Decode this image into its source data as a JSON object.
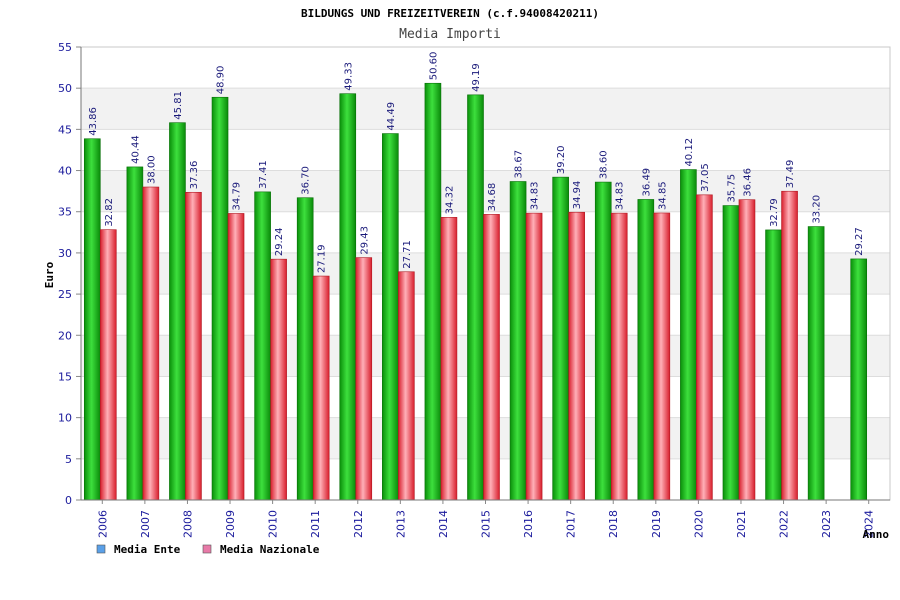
{
  "chart_data": {
    "type": "bar",
    "title": "BILDUNGS UND FREIZEITVEREIN (c.f.94008420211)",
    "subtitle": "Media Importi",
    "xlabel": "Anno",
    "ylabel": "Euro",
    "ylim": [
      0,
      55
    ],
    "yticks": [
      0,
      5,
      10,
      15,
      20,
      25,
      30,
      35,
      40,
      45,
      50,
      55
    ],
    "grid": true,
    "legend_position": "bottom-left",
    "categories": [
      "2006",
      "2007",
      "2008",
      "2009",
      "2010",
      "2011",
      "2012",
      "2013",
      "2014",
      "2015",
      "2016",
      "2017",
      "2018",
      "2019",
      "2020",
      "2021",
      "2022",
      "2023",
      "2024"
    ],
    "series": [
      {
        "name": "Media Ente",
        "legend_color": "#5aa0e8",
        "color": "#12b812",
        "values": [
          43.86,
          40.44,
          45.81,
          48.9,
          37.41,
          36.7,
          49.33,
          44.49,
          50.6,
          49.19,
          38.67,
          39.2,
          38.6,
          36.49,
          40.12,
          35.75,
          32.79,
          33.2,
          29.27
        ],
        "labels": [
          "43.86",
          "40.44",
          "45.81",
          "48.90",
          "37.41",
          "36.70",
          "49.33",
          "44.49",
          "50.60",
          "49.19",
          "38.67",
          "39.20",
          "38.60",
          "36.49",
          "40.12",
          "35.75",
          "32.79",
          "33.20",
          "29.27"
        ]
      },
      {
        "name": "Media Nazionale",
        "legend_color": "#e87aa8",
        "color": "#e8323c",
        "values": [
          32.82,
          38.0,
          37.36,
          34.79,
          29.24,
          27.19,
          29.43,
          27.71,
          34.32,
          34.68,
          34.83,
          34.94,
          34.83,
          34.85,
          37.05,
          36.46,
          37.49,
          null,
          null
        ],
        "labels": [
          "32.82",
          "38.00",
          "37.36",
          "34.79",
          "29.24",
          "27.19",
          "29.43",
          "27.71",
          "34.32",
          "34.68",
          "34.83",
          "34.94",
          "34.83",
          "34.85",
          "37.05",
          "36.46",
          "37.49",
          null,
          null
        ]
      }
    ]
  }
}
